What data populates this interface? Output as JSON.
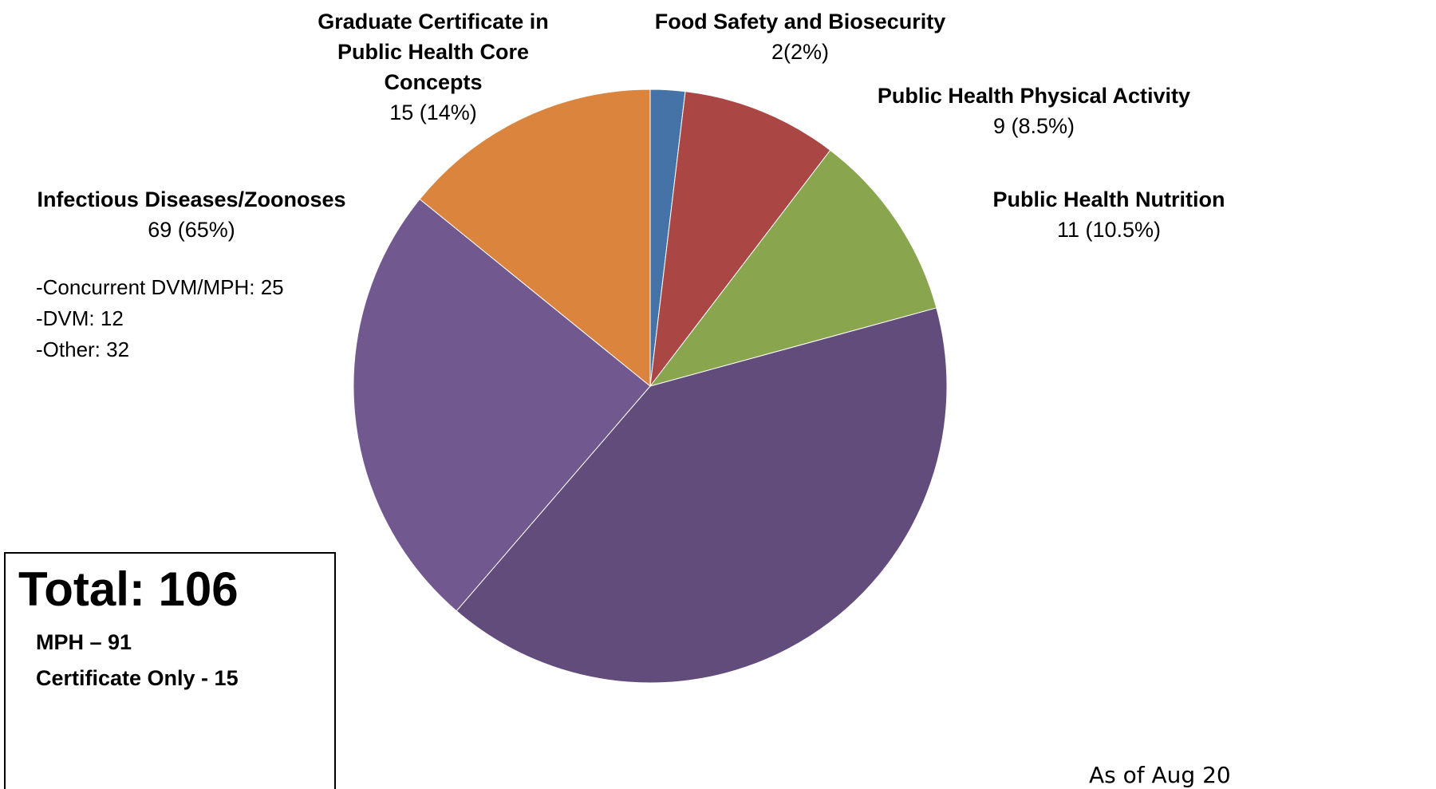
{
  "chart_data": {
    "type": "pie",
    "categories": [
      "Food Safety and Biosecurity",
      "Public Health Physical Activity",
      "Public Health Nutrition",
      null,
      null,
      "Graduate Certificate in Public Health Core Concepts"
    ],
    "values": [
      2,
      9,
      11,
      43,
      26,
      15
    ],
    "value_labels": [
      "2(2%)",
      "9 (8.5%)",
      "11 (10.5%)",
      null,
      null,
      "15 (14%)"
    ],
    "colors": [
      "#4572a7",
      "#aa4643",
      "#89a54e",
      "#614c7b",
      "#71588f",
      "#db843d"
    ],
    "annotations": {
      "group_title": "Infectious Diseases/Zoonoses",
      "group_value": "69 (65%)",
      "group_details": [
        "-Concurrent DVM/MPH: 25",
        "-DVM: 12",
        "-Other: 32"
      ],
      "total": "Total: 106",
      "mph": "MPH – 91",
      "certificate": "Certificate Only - 15",
      "footer": "As of Aug 20"
    }
  }
}
